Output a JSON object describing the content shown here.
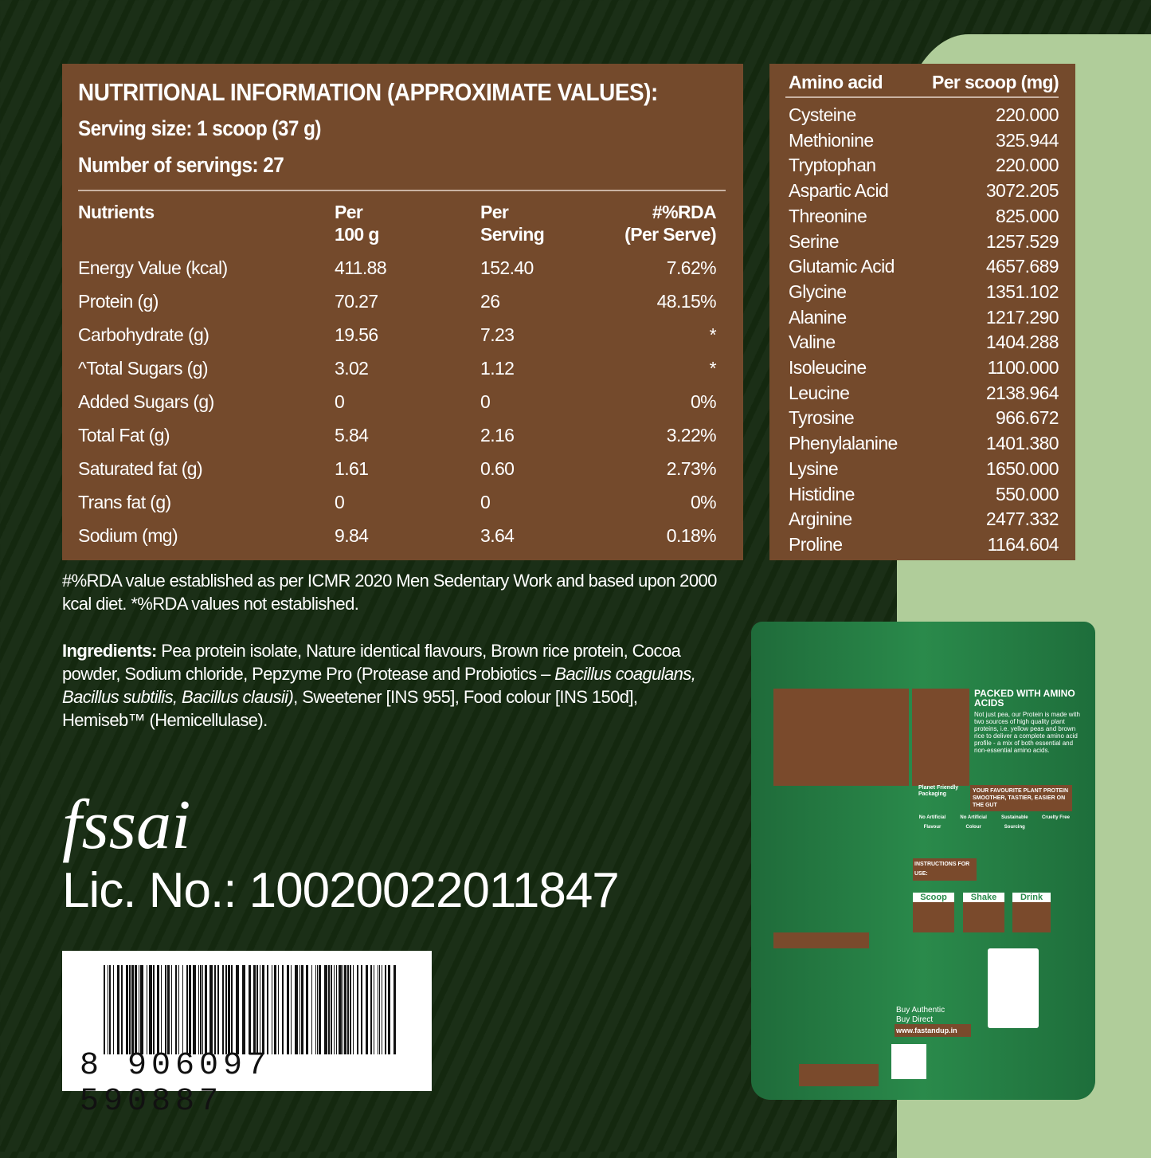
{
  "nutrition": {
    "title": "NUTRITIONAL INFORMATION (APPROXIMATE VALUES):",
    "serving_size": "Serving size: 1 scoop (37 g)",
    "servings": "Number of servings: 27",
    "headers": [
      "Nutrients",
      "Per\n100 g",
      "Per\nServing",
      "#%RDA\n(Per Serve)"
    ],
    "rows": [
      [
        "Energy Value (kcal)",
        "411.88",
        "152.40",
        "7.62%"
      ],
      [
        "Protein (g)",
        "70.27",
        "26",
        "48.15%"
      ],
      [
        "Carbohydrate (g)",
        "19.56",
        "7.23",
        "*"
      ],
      [
        "^Total Sugars (g)",
        "3.02",
        "1.12",
        "*"
      ],
      [
        "Added Sugars (g)",
        "0",
        "0",
        "0%"
      ],
      [
        "Total Fat (g)",
        "5.84",
        "2.16",
        "3.22%"
      ],
      [
        "Saturated fat (g)",
        "1.61",
        "0.60",
        "2.73%"
      ],
      [
        "Trans fat (g)",
        "0",
        "0",
        "0%"
      ],
      [
        "Sodium (mg)",
        "9.84",
        "3.64",
        "0.18%"
      ]
    ]
  },
  "amino": {
    "headers": [
      "Amino acid",
      "Per scoop (mg)"
    ],
    "rows": [
      [
        "Cysteine",
        "220.000"
      ],
      [
        "Methionine",
        "325.944"
      ],
      [
        "Tryptophan",
        "220.000"
      ],
      [
        "Aspartic Acid",
        "3072.205"
      ],
      [
        "Threonine",
        "825.000"
      ],
      [
        "Serine",
        "1257.529"
      ],
      [
        "Glutamic Acid",
        "4657.689"
      ],
      [
        "Glycine",
        "1351.102"
      ],
      [
        "Alanine",
        "1217.290"
      ],
      [
        "Valine",
        "1404.288"
      ],
      [
        "Isoleucine",
        "1100.000"
      ],
      [
        "Leucine",
        "2138.964"
      ],
      [
        "Tyrosine",
        "966.672"
      ],
      [
        "Phenylalanine",
        "1401.380"
      ],
      [
        "Lysine",
        "1650.000"
      ],
      [
        "Histidine",
        "550.000"
      ],
      [
        "Arginine",
        "2477.332"
      ],
      [
        "Proline",
        "1164.604"
      ]
    ]
  },
  "rda_note": "#%RDA value established as per ICMR 2020 Men Sedentary Work and based upon 2000 kcal diet. *%RDA values not established.",
  "ingredients": {
    "label": "Ingredients:",
    "text1": " Pea protein isolate, Nature identical flavours, Brown rice protein, Cocoa powder, Sodium chloride, Pepzyme Pro (Protease and Probiotics – ",
    "italic": "Bacillus coagulans, Bacillus subtilis, Bacillus clausii)",
    "text2": ", Sweetener [INS 955], Food colour [INS 150d], Hemiseb™ (Hemicellulase)."
  },
  "fssai_logo": "fssai",
  "license": "Lic. No.: 10020022011847",
  "barcode": "8  906097  590887",
  "pouch": {
    "headline": "PACKED WITH AMINO ACIDS",
    "body": "Not just pea, our Protein is made with two sources of high quality plant proteins, i.e. yellow peas and brown rice to deliver a complete amino acid profile - a mix of both essential and non-essential amino acids.",
    "banner": "YOUR FAVOURITE PLANT PROTEIN SMOOTHER, TASTIER, EASIER ON THE GUT",
    "packaging": "Planet Friendly Packaging",
    "badges": [
      "No Artificial Flavour",
      "No Artificial Colour",
      "Sustainable Sourcing",
      "Cruelty Free"
    ],
    "instructions": "INSTRUCTIONS FOR USE:",
    "steps": [
      "Scoop",
      "Shake",
      "Drink"
    ],
    "buy": "Buy Authentic Buy Direct",
    "url": "www.fastandup.in"
  },
  "colors": {
    "brown": "#744a2c",
    "dark_green": "#1b2f17",
    "light_green": "#b0cd9a",
    "pouch_green": "#2a8a4b"
  }
}
